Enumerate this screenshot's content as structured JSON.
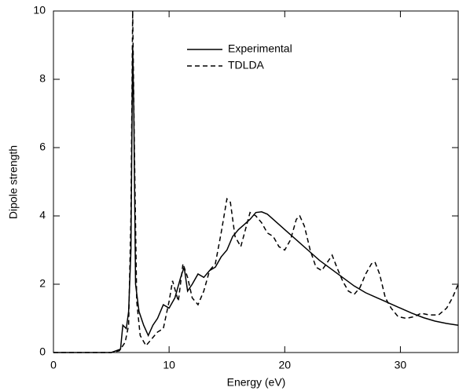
{
  "chart_data": {
    "type": "line",
    "xlabel": "Energy (eV)",
    "ylabel": "Dipole strength",
    "xlim": [
      0,
      35
    ],
    "ylim": [
      0,
      10
    ],
    "xticks": [
      0,
      10,
      20,
      30
    ],
    "yticks": [
      0,
      2,
      4,
      6,
      8,
      10
    ],
    "legend": "top",
    "series": [
      {
        "name": "Experimental",
        "color": "#000000",
        "line_style": "solid",
        "x": [
          0,
          5,
          5.8,
          6.0,
          6.3,
          6.5,
          6.7,
          6.85,
          6.95,
          7.1,
          7.4,
          7.8,
          8.2,
          8.6,
          9,
          9.5,
          10,
          10.5,
          11,
          11.3,
          11.6,
          12,
          12.5,
          13,
          13.5,
          14,
          14.5,
          15,
          15.5,
          16,
          16.5,
          17,
          17.5,
          18,
          18.5,
          19,
          20,
          21,
          22,
          23,
          24,
          25,
          26,
          27,
          28,
          29,
          30,
          31,
          32,
          33,
          34,
          35
        ],
        "values": [
          0,
          0,
          0.1,
          0.8,
          0.7,
          1.2,
          3,
          9,
          7,
          2,
          1.2,
          0.8,
          0.5,
          0.8,
          1,
          1.4,
          1.3,
          1.6,
          2.2,
          2.5,
          1.8,
          2.0,
          2.3,
          2.2,
          2.4,
          2.5,
          2.8,
          3.0,
          3.4,
          3.6,
          3.75,
          3.9,
          4.1,
          4.12,
          4.05,
          3.9,
          3.6,
          3.3,
          3.0,
          2.7,
          2.45,
          2.2,
          1.95,
          1.75,
          1.6,
          1.45,
          1.3,
          1.15,
          1.02,
          0.92,
          0.85,
          0.8
        ]
      },
      {
        "name": "TDLDA",
        "color": "#000000",
        "line_style": "dashed",
        "x": [
          0,
          5,
          5.7,
          6.2,
          6.5,
          6.7,
          6.85,
          7.0,
          7.2,
          7.5,
          8,
          8.5,
          9,
          9.5,
          10,
          10.3,
          10.8,
          11.2,
          11.6,
          12,
          12.5,
          13,
          13.5,
          14,
          14.5,
          15,
          15.3,
          15.7,
          16.2,
          16.6,
          17,
          17.5,
          18,
          18.5,
          19,
          19.5,
          20,
          20.5,
          21,
          21.3,
          21.7,
          22.2,
          22.7,
          23.2,
          23.8,
          24.1,
          24.5,
          25,
          25.5,
          26,
          26.5,
          27,
          27.5,
          27.8,
          28.2,
          28.7,
          29.2,
          29.8,
          30.5,
          31.2,
          31.8,
          32.5,
          33.3,
          34,
          34.5,
          35
        ],
        "values": [
          0,
          0,
          0.05,
          0.3,
          0.8,
          4,
          10,
          6,
          1.5,
          0.5,
          0.2,
          0.4,
          0.6,
          0.7,
          1.5,
          2.1,
          1.5,
          2.6,
          2.2,
          1.6,
          1.4,
          1.8,
          2.4,
          2.6,
          3.5,
          4.5,
          4.4,
          3.4,
          3.1,
          3.6,
          4.1,
          4.0,
          3.8,
          3.5,
          3.4,
          3.1,
          3.0,
          3.3,
          3.9,
          4.0,
          3.7,
          3.0,
          2.5,
          2.4,
          2.7,
          2.85,
          2.5,
          2.1,
          1.8,
          1.7,
          1.9,
          2.3,
          2.6,
          2.65,
          2.3,
          1.6,
          1.3,
          1.05,
          1.0,
          1.05,
          1.15,
          1.1,
          1.1,
          1.3,
          1.6,
          2.0
        ]
      }
    ]
  }
}
